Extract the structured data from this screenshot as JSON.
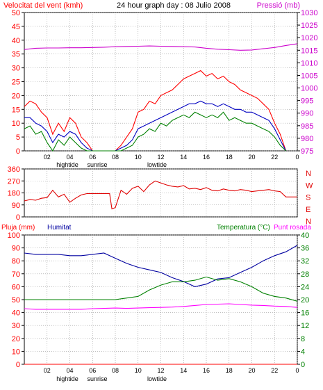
{
  "header": {
    "wind_speed_label": "Velocitat del vent (kmh)",
    "title": "24 hour graph day : 08 Julio 2008",
    "pressure_label": "Pressió (mb)"
  },
  "colors": {
    "wind_gust": "#ff0000",
    "wind_avg": "#0000c0",
    "wind_secondary": "#008000",
    "pressure": "#cc00cc",
    "direction": "#e00000",
    "rain": "#ff0000",
    "humidity": "#0000a0",
    "temperature": "#008000",
    "dewpoint": "#ff00ff",
    "grid": "#9a9a9a",
    "axis": "#000000"
  },
  "x_ticks": [
    "02",
    "04",
    "06",
    "08",
    "10",
    "12",
    "14",
    "16",
    "18",
    "20",
    "22",
    "0"
  ],
  "tide_labels": {
    "hightide": "hightide",
    "sunrise": "sunrise",
    "lowtide": "lowtide"
  },
  "panel3_labels": {
    "rain": "Pluja (mm)",
    "humidity": "Humitat",
    "temperature": "Temperatura (°C)",
    "dewpoint": "Punt rosada"
  },
  "direction_letters": [
    "N",
    "W",
    "S",
    "E",
    "N"
  ],
  "chart_data": [
    {
      "type": "line",
      "ylabel": "Velocitat del vent (kmh)",
      "ylim": [
        0,
        50
      ],
      "y_ticks": [
        0,
        5,
        10,
        15,
        20,
        25,
        30,
        35,
        40,
        45,
        50
      ],
      "y2label": "Pressió (mb)",
      "y2lim": [
        975,
        1030
      ],
      "y2_ticks": [
        975,
        980,
        985,
        990,
        995,
        1000,
        1005,
        1010,
        1015,
        1020,
        1025,
        1030
      ],
      "x_range_hours": [
        0,
        24
      ],
      "series": [
        {
          "color": "#ff0000",
          "x": [
            0,
            0.5,
            1,
            1.5,
            2,
            2.5,
            3,
            3.5,
            4,
            4.5,
            5,
            5.5,
            6,
            7,
            8,
            8.5,
            9,
            9.5,
            10,
            10.5,
            11,
            11.5,
            12,
            12.5,
            13,
            13.5,
            14,
            14.5,
            15,
            15.5,
            16,
            16.5,
            17,
            17.5,
            18,
            18.5,
            19,
            19.5,
            20,
            20.5,
            21,
            21.5,
            22,
            22.5,
            23
          ],
          "y": [
            16,
            18,
            17,
            14,
            12,
            6,
            10,
            7,
            12,
            10,
            5,
            3,
            0,
            0,
            0,
            2,
            5,
            8,
            14,
            15,
            18,
            17,
            20,
            21,
            22,
            24,
            26,
            27,
            28,
            29,
            27,
            28,
            26,
            27,
            25,
            24,
            22,
            21,
            20,
            19,
            17,
            15,
            10,
            6,
            0
          ]
        },
        {
          "color": "#0000c0",
          "x": [
            0,
            0.5,
            1,
            1.5,
            2,
            2.5,
            3,
            3.5,
            4,
            4.5,
            5,
            5.5,
            6,
            7,
            8,
            8.5,
            9,
            9.5,
            10,
            10.5,
            11,
            11.5,
            12,
            12.5,
            13,
            13.5,
            14,
            14.5,
            15,
            15.5,
            16,
            16.5,
            17,
            17.5,
            18,
            18.5,
            19,
            19.5,
            20,
            20.5,
            21,
            21.5,
            22,
            22.5,
            23
          ],
          "y": [
            12,
            12,
            10,
            9,
            7,
            3,
            6,
            5,
            7,
            6,
            3,
            1,
            0,
            0,
            0,
            1,
            2,
            4,
            8,
            9,
            10,
            11,
            12,
            13,
            14,
            15,
            16,
            17,
            17,
            18,
            17,
            17,
            16,
            17,
            16,
            15,
            15,
            14,
            14,
            13,
            12,
            11,
            8,
            4,
            0
          ]
        },
        {
          "color": "#008000",
          "x": [
            0,
            0.5,
            1,
            1.5,
            2,
            2.5,
            3,
            3.5,
            4,
            4.5,
            5,
            5.5,
            6,
            7,
            8,
            8.5,
            9,
            9.5,
            10,
            10.5,
            11,
            11.5,
            12,
            12.5,
            13,
            13.5,
            14,
            14.5,
            15,
            15.5,
            16,
            16.5,
            17,
            17.5,
            18,
            18.5,
            19,
            19.5,
            20,
            20.5,
            21,
            21.5,
            22,
            22.5,
            23
          ],
          "y": [
            8,
            9,
            6,
            7,
            3,
            0,
            4,
            2,
            5,
            3,
            1,
            0,
            0,
            0,
            0,
            0,
            1,
            2,
            5,
            6,
            8,
            7,
            10,
            9,
            11,
            12,
            13,
            12,
            14,
            13,
            12,
            13,
            12,
            14,
            11,
            12,
            11,
            10,
            10,
            9,
            8,
            7,
            5,
            2,
            0
          ]
        },
        {
          "color": "#cc00cc",
          "axis": "right",
          "x": [
            0,
            1,
            2,
            3,
            4,
            5,
            6,
            7,
            8,
            9,
            10,
            11,
            12,
            13,
            14,
            15,
            16,
            17,
            18,
            19,
            20,
            21,
            22,
            23,
            24
          ],
          "y": [
            1015.3,
            1015.8,
            1015.9,
            1015.9,
            1016.0,
            1016.0,
            1016.1,
            1016.2,
            1016.4,
            1016.5,
            1016.6,
            1016.7,
            1016.6,
            1016.5,
            1016.4,
            1016.3,
            1015.8,
            1015.4,
            1015.2,
            1015.0,
            1015.1,
            1015.6,
            1016.1,
            1016.9,
            1017.6
          ]
        }
      ]
    },
    {
      "type": "line",
      "ylim": [
        0,
        360
      ],
      "y_ticks": [
        0,
        90,
        180,
        270,
        360
      ],
      "x_range_hours": [
        0,
        24
      ],
      "series": [
        {
          "color": "#e00000",
          "x": [
            0,
            0.5,
            1,
            1.5,
            2,
            2.5,
            3,
            3.5,
            4,
            4.5,
            5,
            5.5,
            6,
            7,
            7.5,
            7.7,
            8,
            8.5,
            9,
            9.5,
            10,
            10.5,
            11,
            11.5,
            12,
            12.5,
            13,
            13.5,
            14,
            14.5,
            15,
            15.5,
            16,
            16.5,
            17,
            17.5,
            18,
            18.5,
            19,
            19.5,
            20,
            20.5,
            21,
            21.5,
            22,
            22.5,
            23,
            23.5,
            24
          ],
          "y": [
            120,
            130,
            125,
            140,
            145,
            200,
            150,
            170,
            110,
            140,
            165,
            175,
            175,
            175,
            175,
            60,
            70,
            200,
            170,
            215,
            230,
            190,
            240,
            270,
            255,
            240,
            230,
            225,
            235,
            210,
            215,
            205,
            220,
            200,
            195,
            210,
            200,
            195,
            205,
            200,
            190,
            195,
            200,
            205,
            195,
            190,
            150,
            150,
            150
          ]
        }
      ]
    },
    {
      "type": "line",
      "ylabel": "Pluja (mm)",
      "ylim": [
        0,
        100
      ],
      "y_ticks": [
        0,
        10,
        20,
        30,
        40,
        50,
        60,
        70,
        80,
        90,
        100
      ],
      "y_ticks_labels_left": [
        "0",
        "10",
        "20",
        "30",
        "40",
        "50",
        "60",
        "70",
        "80",
        "90",
        "100"
      ],
      "y2label": "Temperatura (°C)",
      "y2lim": [
        0,
        40
      ],
      "y2_ticks": [
        0,
        4,
        8,
        12,
        16,
        20,
        24,
        28,
        32,
        36,
        40
      ],
      "x_range_hours": [
        0,
        24
      ],
      "series": [
        {
          "name": "Humitat",
          "color": "#0000a0",
          "x": [
            0,
            1,
            2,
            3,
            4,
            5,
            6,
            7,
            8,
            9,
            10,
            11,
            12,
            13,
            14,
            15,
            16,
            17,
            18,
            19,
            20,
            21,
            22,
            23,
            24
          ],
          "y": [
            86,
            85,
            85,
            85,
            84,
            84,
            85,
            86,
            82,
            78,
            75,
            73,
            71,
            67,
            64,
            60,
            62,
            66,
            67,
            71,
            75,
            80,
            84,
            87,
            92
          ]
        },
        {
          "color": "#008000",
          "axis": "right",
          "x": [
            0,
            1,
            2,
            3,
            4,
            5,
            6,
            7,
            8,
            9,
            10,
            11,
            12,
            13,
            14,
            15,
            16,
            17,
            18,
            19,
            20,
            21,
            22,
            23,
            24
          ],
          "y": [
            20,
            20,
            20,
            20,
            20,
            20,
            20,
            20,
            20,
            20.5,
            21,
            23,
            24.5,
            25.5,
            25.5,
            26,
            27,
            26,
            26.5,
            25.5,
            24,
            22,
            21,
            20.5,
            19.5
          ]
        },
        {
          "name": "Punt rosada",
          "color": "#ff00ff",
          "axis": "right",
          "x": [
            0,
            1,
            2,
            3,
            4,
            5,
            6,
            7,
            8,
            9,
            10,
            11,
            12,
            13,
            14,
            15,
            16,
            17,
            18,
            19,
            20,
            21,
            22,
            23,
            24
          ],
          "y": [
            17.2,
            17,
            17,
            17,
            17,
            17,
            17.2,
            17.3,
            17.4,
            17.3,
            17.4,
            17.5,
            17.6,
            17.7,
            17.9,
            18.2,
            18.5,
            18.6,
            18.7,
            18.5,
            18.3,
            18.2,
            18.0,
            17.9,
            17.6
          ]
        },
        {
          "name": "Pluja",
          "color": "#ff0000",
          "x": [
            0,
            24
          ],
          "y": [
            0,
            0
          ]
        }
      ]
    }
  ]
}
